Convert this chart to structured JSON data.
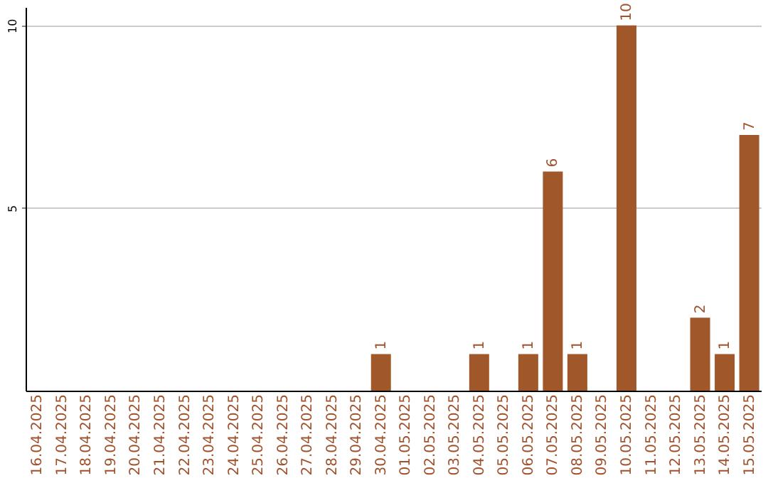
{
  "chart_data": {
    "type": "bar",
    "categories": [
      "16.04.2025",
      "17.04.2025",
      "18.04.2025",
      "19.04.2025",
      "20.04.2025",
      "21.04.2025",
      "22.04.2025",
      "23.04.2025",
      "24.04.2025",
      "25.04.2025",
      "26.04.2025",
      "27.04.2025",
      "28.04.2025",
      "29.04.2025",
      "30.04.2025",
      "01.05.2025",
      "02.05.2025",
      "03.05.2025",
      "04.05.2025",
      "05.05.2025",
      "06.05.2025",
      "07.05.2025",
      "08.05.2025",
      "09.05.2025",
      "10.05.2025",
      "11.05.2025",
      "12.05.2025",
      "13.05.2025",
      "14.05.2025",
      "15.05.2025"
    ],
    "values": [
      0,
      0,
      0,
      0,
      0,
      0,
      0,
      0,
      0,
      0,
      0,
      0,
      0,
      0,
      1,
      0,
      0,
      0,
      1,
      0,
      1,
      6,
      1,
      0,
      10,
      0,
      0,
      2,
      1,
      7
    ],
    "value_labels": [
      null,
      null,
      null,
      null,
      null,
      null,
      null,
      null,
      null,
      null,
      null,
      null,
      null,
      null,
      "1",
      null,
      null,
      null,
      "1",
      null,
      "1",
      "6",
      "1",
      null,
      "10",
      null,
      null,
      "2",
      "1",
      "7"
    ],
    "color": "#a0582a",
    "ylim": [
      0,
      10.5
    ],
    "yticks": [
      5,
      10
    ],
    "grid": "y"
  }
}
